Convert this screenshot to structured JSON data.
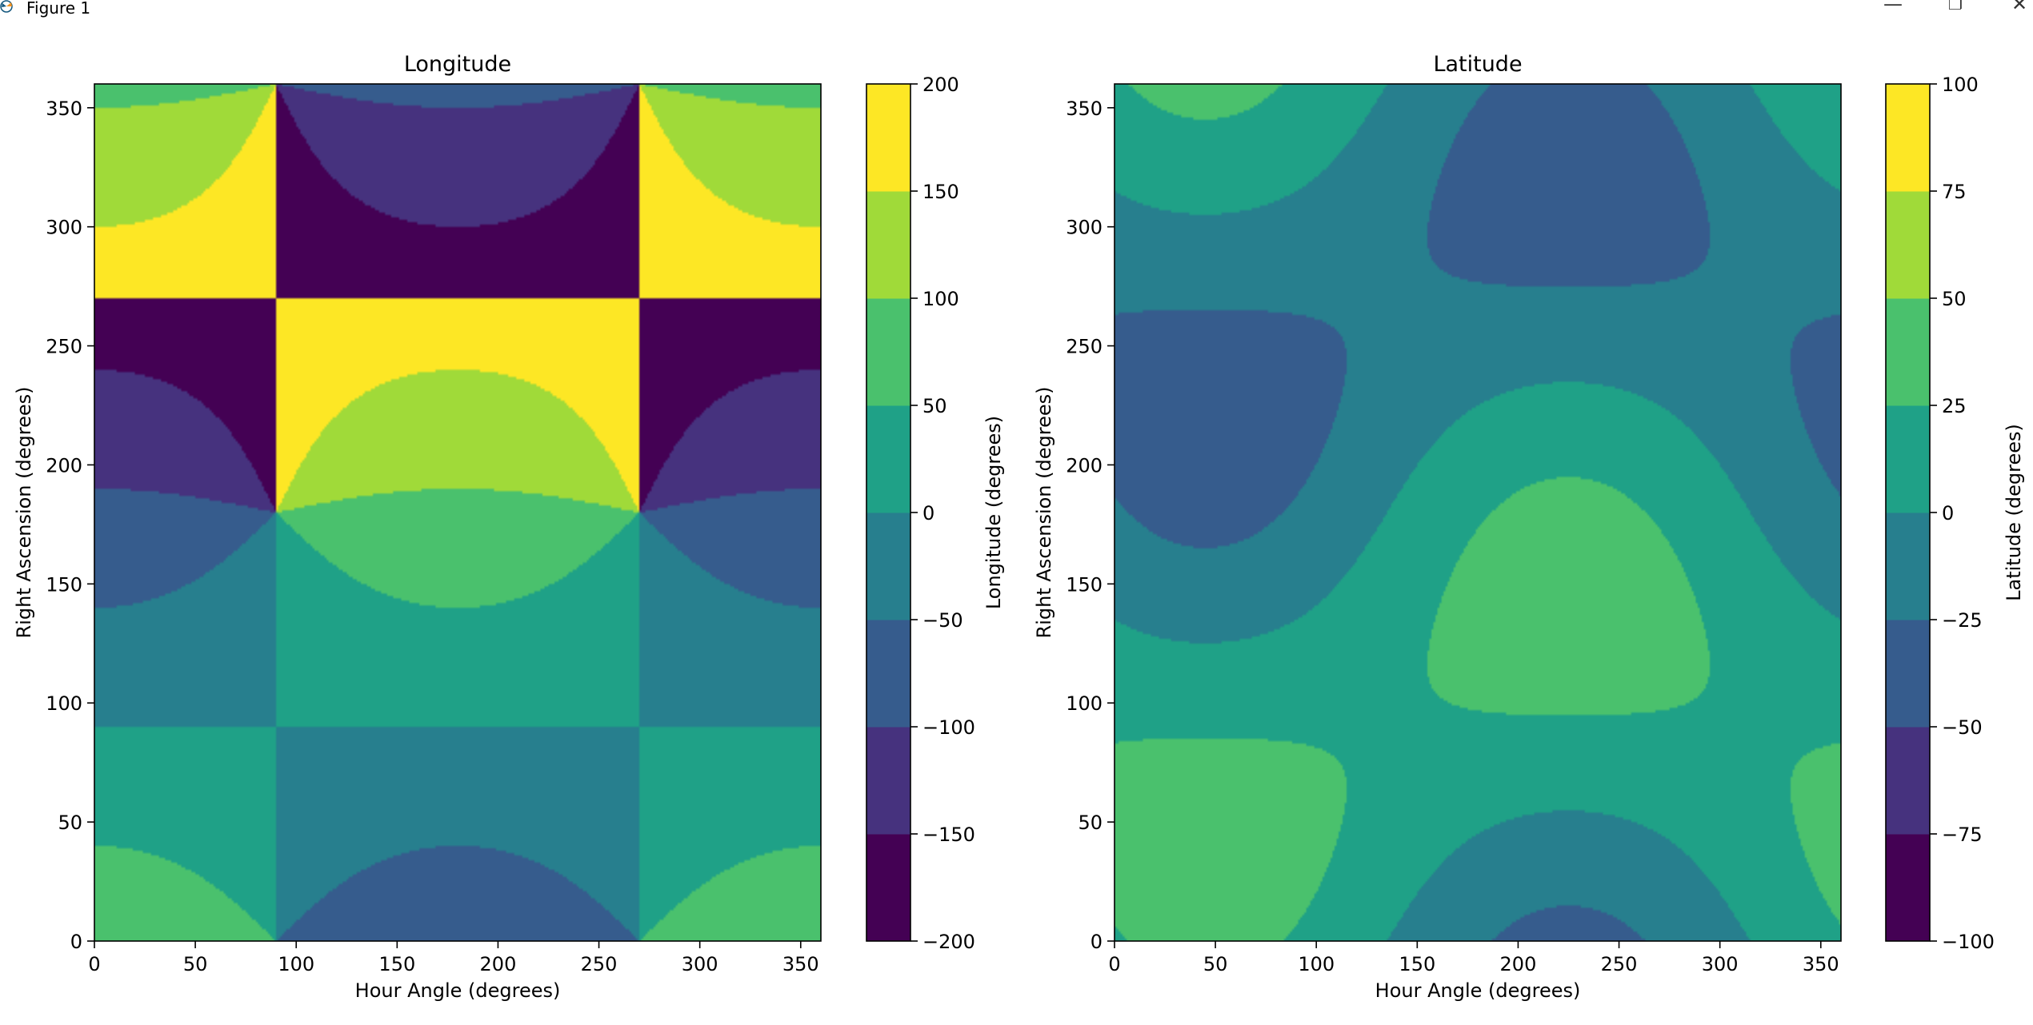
{
  "window": {
    "title": "Figure 1",
    "icons": {
      "app": "matplotlib-icon",
      "minimize": "minimize-icon",
      "maximize": "restore-icon",
      "close": "close-icon"
    },
    "glyphs": {
      "minimize": "—",
      "maximize": "❐",
      "close": "✕"
    }
  },
  "colors": {
    "viridis_levels": [
      "#440154",
      "#46327e",
      "#365c8d",
      "#277f8e",
      "#1fa187",
      "#4ac16d",
      "#a0da39",
      "#fde725"
    ]
  },
  "chart_data": [
    {
      "type": "heatmap",
      "title": "Longitude",
      "xlabel": "Hour Angle (degrees)",
      "ylabel": "Right Ascension (degrees)",
      "xlim": [
        0,
        360
      ],
      "ylim": [
        0,
        360
      ],
      "xticks": [
        "0",
        "50",
        "100",
        "150",
        "200",
        "250",
        "300",
        "350"
      ],
      "yticks": [
        "0",
        "50",
        "100",
        "150",
        "200",
        "250",
        "300",
        "350"
      ],
      "xtick_values": [
        0,
        50,
        100,
        150,
        200,
        250,
        300,
        350
      ],
      "ytick_values": [
        0,
        50,
        100,
        150,
        200,
        250,
        300,
        350
      ],
      "colorbar": {
        "label": "Longitude (degrees)",
        "levels": [
          -200,
          -150,
          -100,
          -50,
          0,
          50,
          100,
          150,
          200
        ],
        "ticks": [
          "−200",
          "−150",
          "−100",
          "−50",
          "0",
          "50",
          "100",
          "150",
          "200"
        ]
      },
      "field": "longitude"
    },
    {
      "type": "heatmap",
      "title": "Latitude",
      "xlabel": "Hour Angle (degrees)",
      "ylabel": "Right Ascension (degrees)",
      "xlim": [
        0,
        360
      ],
      "ylim": [
        0,
        360
      ],
      "xticks": [
        "0",
        "50",
        "100",
        "150",
        "200",
        "250",
        "300",
        "350"
      ],
      "yticks": [
        "0",
        "50",
        "100",
        "150",
        "200",
        "250",
        "300",
        "350"
      ],
      "xtick_values": [
        0,
        50,
        100,
        150,
        200,
        250,
        300,
        350
      ],
      "ytick_values": [
        0,
        50,
        100,
        150,
        200,
        250,
        300,
        350
      ],
      "colorbar": {
        "label": "Latitude (degrees)",
        "levels": [
          -100,
          -75,
          -50,
          -25,
          0,
          25,
          50,
          75,
          100
        ],
        "ticks": [
          "−100",
          "−75",
          "−50",
          "−25",
          "0",
          "25",
          "50",
          "75",
          "100"
        ]
      },
      "field": "latitude"
    }
  ]
}
